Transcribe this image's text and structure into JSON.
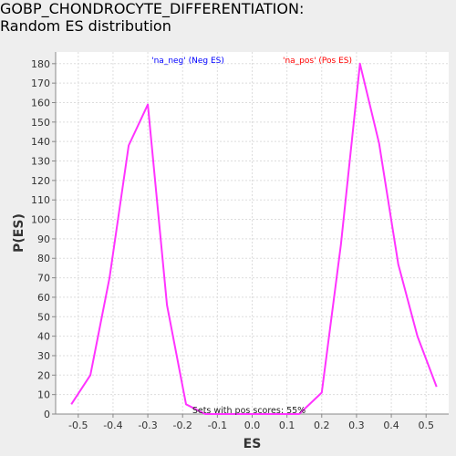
{
  "chart_data": {
    "type": "line",
    "title_lines": [
      "GOBP_CHONDROCYTE_DIFFERENTIATION:",
      "Random ES distribution"
    ],
    "xlabel": "ES",
    "ylabel": "P(ES)",
    "xlim": [
      -0.565,
      0.565
    ],
    "ylim": [
      0,
      186
    ],
    "x_ticks": [
      -0.5,
      -0.4,
      -0.3,
      -0.2,
      -0.1,
      0.0,
      0.1,
      0.2,
      0.3,
      0.4,
      0.5
    ],
    "x_tick_labels": [
      "-0.5",
      "-0.4",
      "-0.3",
      "-0.2",
      "-0.1",
      "0.0",
      "0.1",
      "0.2",
      "0.3",
      "0.4",
      "0.5"
    ],
    "y_ticks": [
      0,
      10,
      20,
      30,
      40,
      50,
      60,
      70,
      80,
      90,
      100,
      110,
      120,
      130,
      140,
      150,
      160,
      170,
      180
    ],
    "y_tick_labels": [
      "0",
      "10",
      "20",
      "30",
      "40",
      "50",
      "60",
      "70",
      "80",
      "90",
      "100",
      "110",
      "120",
      "130",
      "140",
      "150",
      "160",
      "170",
      "180"
    ],
    "grid": true,
    "series": [
      {
        "name": "Random ES distribution",
        "color": "#ff33ff",
        "x": [
          -0.52,
          -0.465,
          -0.41,
          -0.355,
          -0.3,
          -0.245,
          -0.19,
          -0.135,
          0.135,
          0.2,
          0.255,
          0.31,
          0.365,
          0.42,
          0.475,
          0.53
        ],
        "y": [
          5,
          20,
          70,
          138,
          159,
          56,
          5,
          0,
          0,
          11,
          87,
          180,
          139,
          77,
          40,
          14
        ]
      }
    ],
    "legend": [
      {
        "label": "'na_neg' (Neg ES)",
        "color": "#0000ff",
        "placement": "top-left-center"
      },
      {
        "label": "'na_pos' (Pos ES)",
        "color": "#ff0000",
        "placement": "top-right-center"
      }
    ],
    "annotation": "Sets with pos scores: 55%"
  },
  "colors": {
    "background": "#eeeeee",
    "plot_background": "#ffffff",
    "grid": "#dddddd",
    "axis": "#888888",
    "line": "#ff33ff"
  }
}
